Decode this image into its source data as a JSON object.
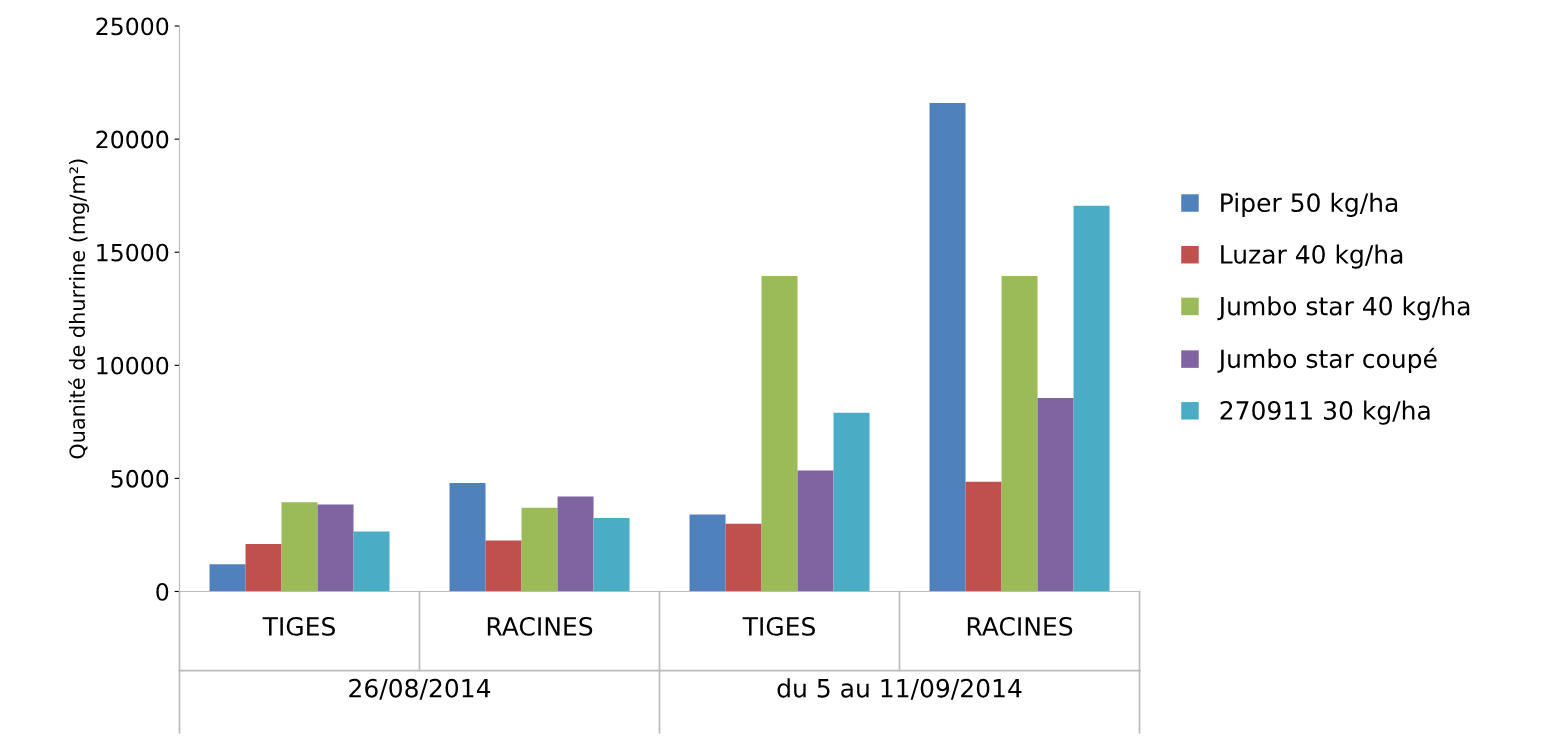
{
  "chart_data": {
    "type": "bar",
    "ylabel": "Quanité de dhurrine (mg/m²)",
    "categories": [
      "TIGES",
      "RACINES",
      "TIGES",
      "RACINES"
    ],
    "annotations": [
      "26/08/2014",
      "du 5 au 11/09/2014"
    ],
    "series": [
      {
        "name": "Piper 50 kg/ha",
        "color": "#4f81bd",
        "values": [
          1200,
          4800,
          3400,
          21600
        ]
      },
      {
        "name": "Luzar 40 kg/ha",
        "color": "#c0504d",
        "values": [
          2100,
          2250,
          3000,
          4850
        ]
      },
      {
        "name": "Jumbo star 40 kg/ha",
        "color": "#9bbb59",
        "values": [
          3950,
          3700,
          13950,
          13950
        ]
      },
      {
        "name": "Jumbo star coupé",
        "color": "#8064a2",
        "values": [
          3850,
          4200,
          5350,
          8550
        ]
      },
      {
        "name": "270911 30 kg/ha",
        "color": "#4bacc6",
        "values": [
          2650,
          3250,
          7900,
          17050
        ]
      }
    ],
    "ylim": [
      0,
      25000
    ],
    "yticks": [
      0,
      5000,
      10000,
      15000,
      20000,
      25000
    ],
    "grid": false,
    "legend": "right"
  }
}
